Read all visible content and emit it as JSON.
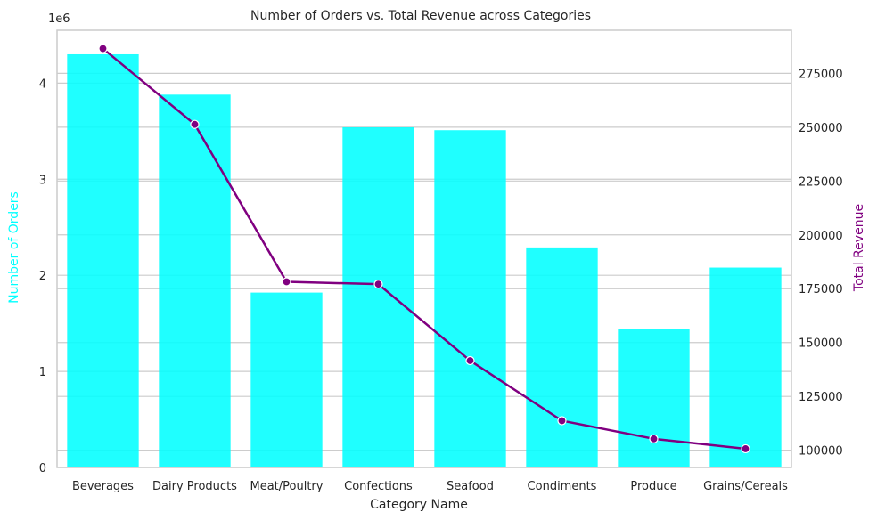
{
  "chart_data": {
    "type": "bar",
    "title": "Number of Orders vs. Total Revenue across Categories",
    "xlabel": "Category Name",
    "ylabel": "Number of Orders",
    "y2label": "Total Revenue",
    "y_offset_label": "1e6",
    "categories": [
      "Beverages",
      "Dairy Products",
      "Meat/Poultry",
      "Confections",
      "Seafood",
      "Condiments",
      "Produce",
      "Grains/Cereals"
    ],
    "series": [
      {
        "type": "bar",
        "axis": "left",
        "color": "#00ffff",
        "values": [
          4300000,
          3880000,
          1820000,
          3540000,
          3510000,
          2290000,
          1440000,
          2080000
        ]
      },
      {
        "type": "line",
        "axis": "right",
        "color": "#800080",
        "values": [
          286500,
          251300,
          178200,
          177100,
          141600,
          113700,
          105300,
          100700
        ]
      }
    ],
    "ylim": [
      0,
      4550000
    ],
    "y2lim": [
      92000,
      295000
    ],
    "yticks": [
      0,
      1,
      2,
      3,
      4
    ],
    "yticks_scale": 1000000,
    "y2ticks": [
      100000,
      125000,
      150000,
      175000,
      200000,
      225000,
      250000,
      275000
    ],
    "grid": true,
    "legend": "none",
    "colors": {
      "left_label": "#00ffff",
      "right_label": "#800080",
      "grid": "#cccccc",
      "frame": "#cccccc"
    }
  }
}
